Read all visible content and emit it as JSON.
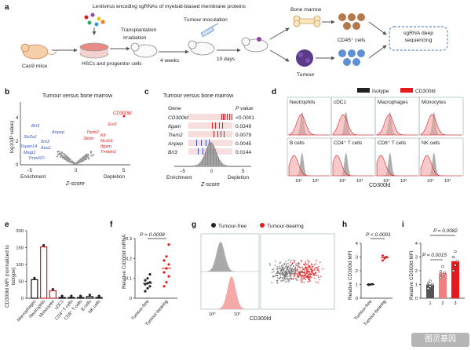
{
  "panel_a": {
    "label": "a",
    "lentivirus": "Lentivirus encoding sgRNAs of myeloid-biased membrane proteins",
    "cas9": "Cas9 mice",
    "hscs": "HSCs and progenitor cells",
    "transplantation": "Transplantation",
    "irradiation": "Irradiation",
    "four_weeks": "4 weeks",
    "tumour_inoculation": "Tumour inoculation",
    "ten_days": "10 days",
    "bone_marrow": "Bone marrow",
    "tumour": "Tumour",
    "cd45": "CD45⁺ cells",
    "sgrna": "sgRNA deep sequencing"
  },
  "panel_b": {
    "label": "b",
    "title": "Tumour versus bone marrow",
    "ylabel": "log10(P value)",
    "xlabel": "Z-score",
    "enrichment": "Enrichment",
    "depletion": "Depletion",
    "ticks_x": [
      "−5",
      "0",
      "5"
    ],
    "ticks_y": [
      "0",
      "2",
      "4"
    ],
    "genes_red": [
      "CD300ld",
      "Ext1",
      "Trem2",
      "Stom",
      "Kit",
      "Ncsh1",
      "Itgam",
      "Tmbim1"
    ],
    "genes_blue": [
      "Bri3",
      "Anpep",
      "Slc2a1",
      "Itm3",
      "Tspan14",
      "Aaa1",
      "Magt1",
      "Tmed10"
    ]
  },
  "panel_c": {
    "label": "c",
    "title": "Tumour versus bone marrow",
    "col_gene": "Gene",
    "col_p": "P value",
    "rows": [
      {
        "gene": "CD300ld",
        "p": "<0.0001"
      },
      {
        "gene": "Itgam",
        "p": "0.0349"
      },
      {
        "gene": "Trem2",
        "p": "0.0079"
      },
      {
        "gene": "Anpep",
        "p": "0.0045"
      },
      {
        "gene": "Bri3",
        "p": "0.0144"
      }
    ],
    "xlabel": "Z-score",
    "enrichment": "Enrichment",
    "depletion": "Depletion",
    "ticks_x": [
      "−5",
      "0",
      "5"
    ]
  },
  "panel_d": {
    "label": "d",
    "legend": [
      "Isotype",
      "CD300ld"
    ],
    "cells": [
      "Neutrophils",
      "cDC1",
      "Macrophages",
      "Monocytes",
      "B cells",
      "CD4⁺ T cells",
      "CD8⁺ T cells",
      "NK cells"
    ],
    "xticks": [
      "10⁰",
      "10³"
    ],
    "xlabel": "CD300ld"
  },
  "panel_e": {
    "label": "e",
    "ylabel": "CD300ld MFI (normalized to isotype)"
  },
  "panel_f": {
    "label": "f",
    "pvalue": "P = 0.0008",
    "ylabel": "Relative Cd300ld mRNA"
  },
  "panel_g": {
    "label": "g",
    "legend": [
      "Tumour-free",
      "Tumour-bearing"
    ],
    "xticks": [
      "10⁰",
      "10³"
    ],
    "xlabel": "CD300ld"
  },
  "panel_h": {
    "label": "h",
    "pvalue": "P < 0.0001",
    "ylabel": "Relative CD300ld MFI"
  },
  "panel_i": {
    "label": "i",
    "p1": "P = 0.0082",
    "p2": "P = 0.0015",
    "ylabel": "Relative CD300ld MFI"
  },
  "watermark": "图灵基因",
  "chart_data": [
    {
      "type": "bar",
      "panel": "e",
      "categories": [
        "Macrophages",
        "Neutrophils",
        "Monocytes",
        "cDC1",
        "CD4⁺ T cells",
        "CD8⁺ T cells",
        "B cells",
        "NK cells"
      ],
      "values": [
        55,
        152,
        22,
        2,
        2,
        2,
        5,
        2
      ],
      "colors": [
        "#111111",
        "#e41a1c",
        "#e41a1c",
        "#111111",
        "#111111",
        "#111111",
        "#111111",
        "#111111"
      ],
      "ylim": [
        0,
        200
      ],
      "yticks": [
        0,
        50,
        100,
        150,
        200
      ]
    },
    {
      "type": "scatter",
      "panel": "f",
      "categories": [
        "Tumour-free",
        "Tumour-bearing"
      ],
      "series": [
        {
          "name": "Tumour-free",
          "values": [
            0.035,
            0.05,
            0.06,
            0.07,
            0.075,
            0.08,
            0.09,
            0.1,
            0.12
          ],
          "mean": 0.075
        },
        {
          "name": "Tumour-bearing",
          "values": [
            0.06,
            0.08,
            0.11,
            0.13,
            0.15,
            0.17,
            0.19,
            0.21,
            0.27
          ],
          "mean": 0.15
        }
      ],
      "ylim": [
        0,
        0.3
      ],
      "yticks": [
        0,
        0.1,
        0.2,
        0.3
      ]
    },
    {
      "type": "bar",
      "panel": "h",
      "categories": [
        "Tumour-free",
        "Tumour-bearing"
      ],
      "values": [
        1.0,
        2.95
      ],
      "points": [
        [
          0.97,
          1.0,
          1.02,
          1.0
        ],
        [
          2.75,
          2.9,
          3.0,
          3.1,
          2.95
        ]
      ],
      "ylim": [
        0,
        4
      ],
      "yticks": [
        0,
        1,
        2,
        3,
        4
      ]
    },
    {
      "type": "bar",
      "panel": "i",
      "categories": [
        "1",
        "2",
        "3"
      ],
      "values": [
        1.0,
        1.85,
        2.7
      ],
      "points": [
        [
          0.7,
          0.85,
          1.0,
          1.1,
          1.25
        ],
        [
          1.5,
          1.7,
          1.85,
          1.95,
          2.3
        ],
        [
          2.0,
          2.4,
          2.7,
          3.0,
          3.4
        ]
      ],
      "colors": [
        "#555555",
        "#f08080",
        "#e41a1c"
      ],
      "ylim": [
        0,
        4
      ],
      "yticks": [
        0,
        1,
        2,
        3,
        4
      ]
    }
  ]
}
